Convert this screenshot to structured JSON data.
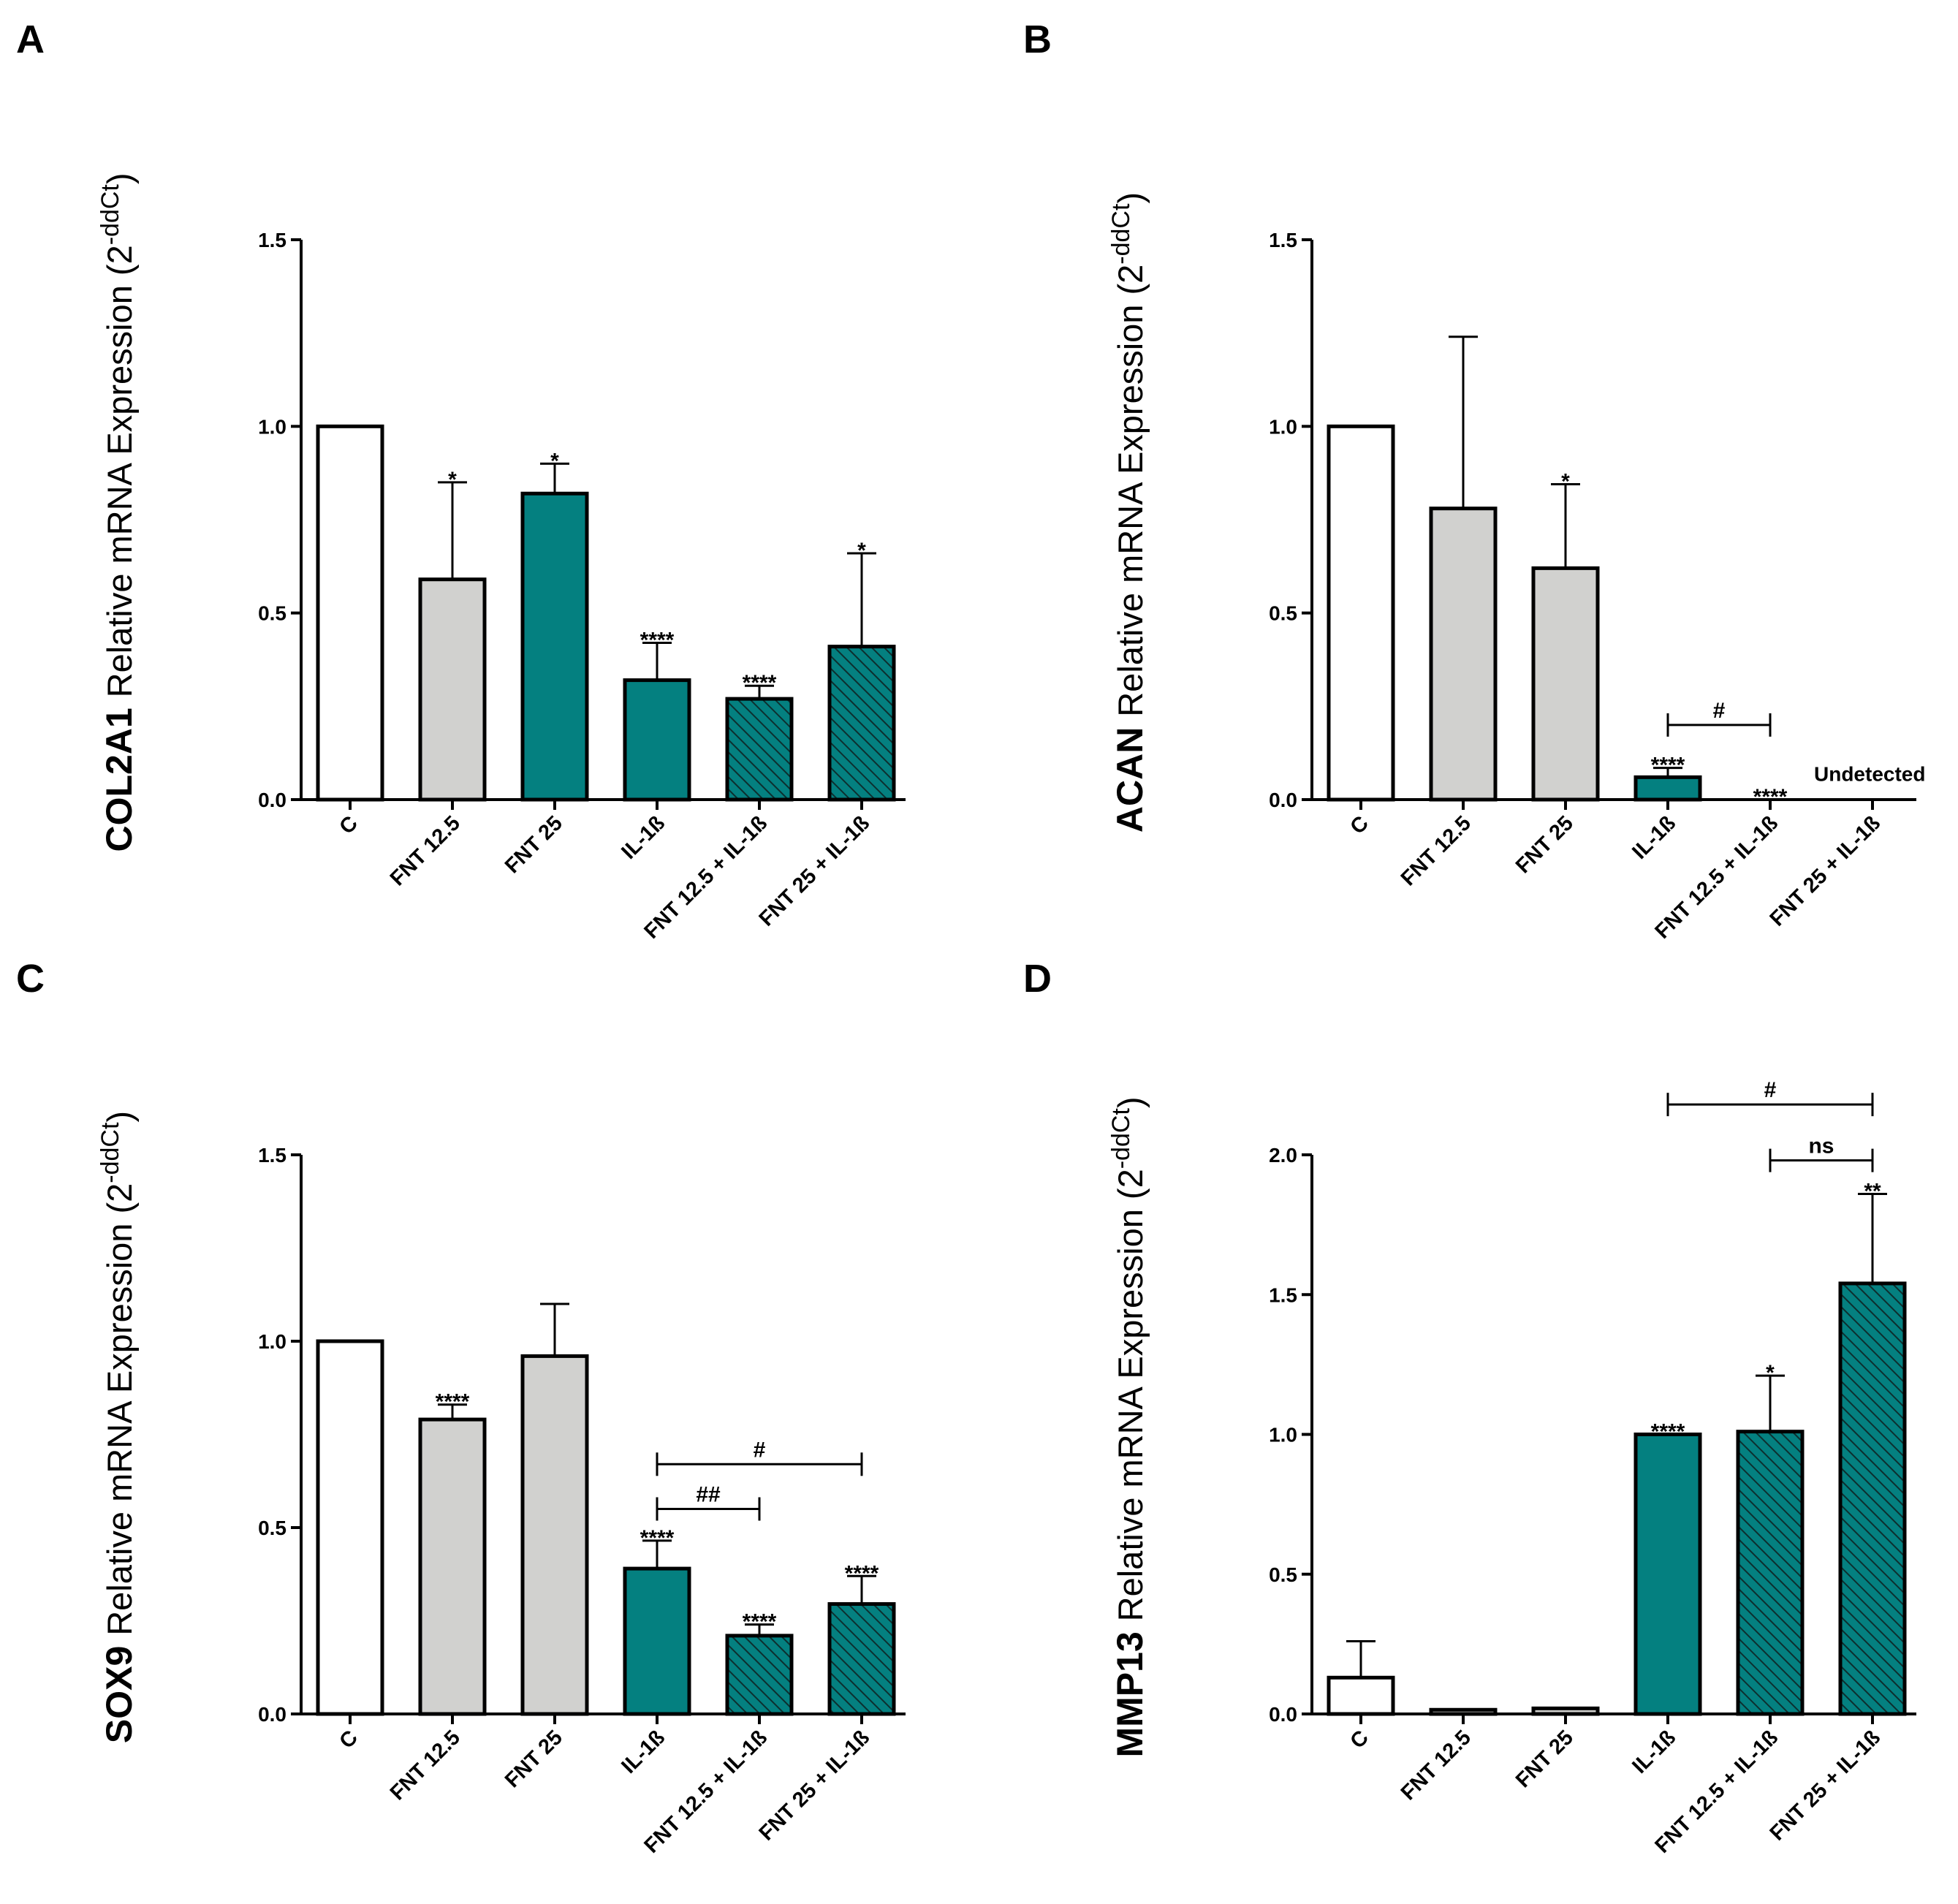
{
  "chart_data": [
    {
      "type": "bar",
      "panel": "A",
      "ylabel_bold": "COL2A1",
      "ylabel_text": "Relative mRNA Expression (2",
      "ylabel_sup": "-ddCt",
      "ylabel_close": ")",
      "ylim": [
        0,
        1.5
      ],
      "ticks": [
        "0.0",
        "0.5",
        "1.0",
        "1.5"
      ],
      "categories": [
        "C",
        "FNT 12.5",
        "FNT 25",
        "IL-1ß",
        "FNT 12.5 + IL-1ß",
        "FNT 25 + IL-1ß"
      ],
      "values": [
        1.0,
        0.59,
        0.82,
        0.32,
        0.27,
        0.41
      ],
      "errors": [
        0,
        0.26,
        0.08,
        0.1,
        0.035,
        0.25
      ],
      "styles": [
        "white",
        "gray",
        "teal",
        "teal",
        "hatch",
        "hatch"
      ],
      "significance": [
        "",
        "*",
        "*",
        "****",
        "****",
        "*"
      ],
      "brackets": [],
      "notes": []
    },
    {
      "type": "bar",
      "panel": "B",
      "ylabel_bold": "ACAN",
      "ylabel_text": "Relative mRNA Expression (2",
      "ylabel_sup": "-ddCt",
      "ylabel_close": ")",
      "ylim": [
        0,
        1.5
      ],
      "ticks": [
        "0.0",
        "0.5",
        "1.0",
        "1.5"
      ],
      "categories": [
        "C",
        "FNT 12.5",
        "FNT 25",
        "IL-1ß",
        "FNT 12.5 + IL-1ß",
        "FNT 25 + IL-1ß"
      ],
      "values": [
        1.0,
        0.78,
        0.62,
        0.06,
        0.0,
        0.0
      ],
      "errors": [
        0,
        0.46,
        0.225,
        0.025,
        0,
        0
      ],
      "styles": [
        "white",
        "gray",
        "gray",
        "teal",
        "none",
        "none"
      ],
      "significance": [
        "",
        "",
        "*",
        "****",
        "****",
        ""
      ],
      "brackets": [
        {
          "from": 3,
          "to": 4,
          "value": 0.2,
          "label": "#"
        }
      ],
      "notes": [
        {
          "index": 5,
          "value": 0.05,
          "label": "Undetected"
        }
      ]
    },
    {
      "type": "bar",
      "panel": "C",
      "ylabel_bold": "SOX9",
      "ylabel_text": "Relative mRNA Expression (2",
      "ylabel_sup": "-ddCt",
      "ylabel_close": ")",
      "ylim": [
        0,
        1.5
      ],
      "ticks": [
        "0.0",
        "0.5",
        "1.0",
        "1.5"
      ],
      "categories": [
        "C",
        "FNT 12.5",
        "FNT 25",
        "IL-1ß",
        "FNT 12.5 + IL-1ß",
        "FNT 25 + IL-1ß"
      ],
      "values": [
        1.0,
        0.79,
        0.96,
        0.39,
        0.21,
        0.295
      ],
      "errors": [
        0,
        0.04,
        0.14,
        0.075,
        0.03,
        0.075
      ],
      "styles": [
        "white",
        "gray",
        "gray",
        "teal",
        "hatch",
        "hatch"
      ],
      "significance": [
        "",
        "****",
        "",
        "****",
        "****",
        "****"
      ],
      "brackets": [
        {
          "from": 3,
          "to": 4,
          "value": 0.55,
          "label": "##"
        },
        {
          "from": 3,
          "to": 5,
          "value": 0.67,
          "label": "#"
        }
      ],
      "notes": []
    },
    {
      "type": "bar",
      "panel": "D",
      "ylabel_bold": "MMP13",
      "ylabel_text": "Relative mRNA Expression (2",
      "ylabel_sup": "-ddCt",
      "ylabel_close": ")",
      "ylim": [
        0,
        2.0
      ],
      "ticks": [
        "0.0",
        "0.5",
        "1.0",
        "1.5",
        "2.0"
      ],
      "categories": [
        "C",
        "FNT 12.5",
        "FNT 25",
        "IL-1ß",
        "FNT 12.5 + IL-1ß",
        "FNT 25 + IL-1ß"
      ],
      "values": [
        0.13,
        0.015,
        0.02,
        1.0,
        1.01,
        1.54
      ],
      "errors": [
        0.13,
        0,
        0,
        0,
        0.2,
        0.32
      ],
      "styles": [
        "white",
        "gray",
        "gray",
        "teal",
        "hatch",
        "hatch"
      ],
      "significance": [
        "",
        "",
        "",
        "****",
        "*",
        "**"
      ],
      "brackets": [
        {
          "from": 4,
          "to": 5,
          "value": 1.98,
          "label": "ns"
        },
        {
          "from": 3,
          "to": 5,
          "value": 2.18,
          "label": "#"
        }
      ],
      "notes": []
    }
  ],
  "colors": {
    "white": "#ffffff",
    "gray": "#d1d1cf",
    "teal": "#048080",
    "axis": "#000000"
  }
}
